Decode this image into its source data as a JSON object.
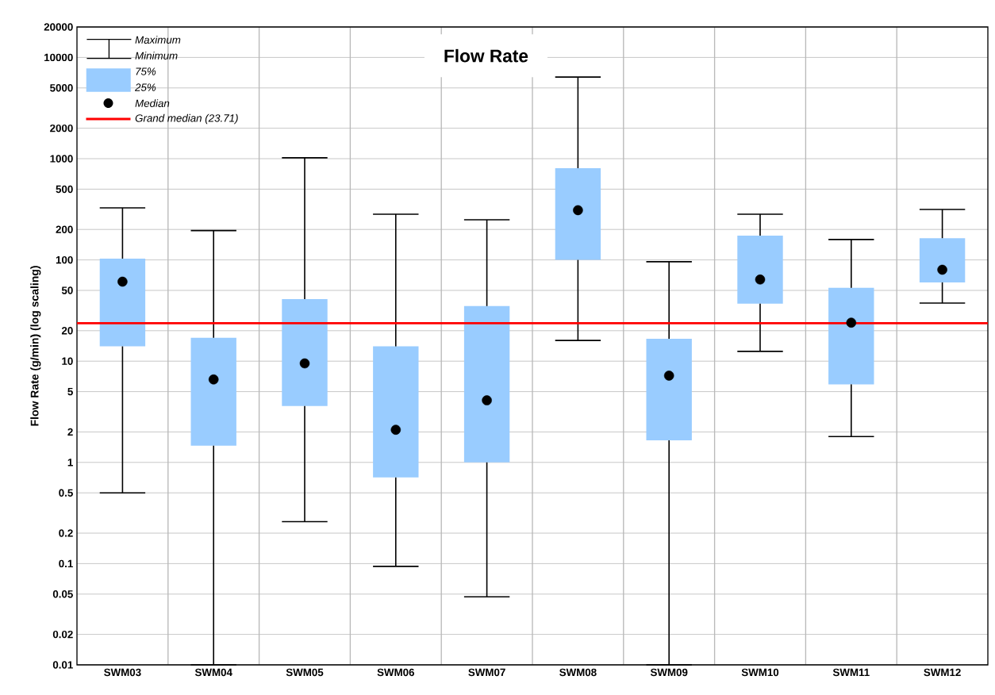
{
  "chart_data": {
    "type": "box",
    "title": "Flow Rate",
    "ylabel": "Flow Rate (g/min) (log scaling)",
    "categories": [
      "SWM03",
      "SWM04",
      "SWM05",
      "SWM06",
      "SWM07",
      "SWM08",
      "SWM09",
      "SWM10",
      "SWM11",
      "SWM12"
    ],
    "series": [
      {
        "color": "#99ccff",
        "boxes": [
          {
            "low": 0.5,
            "q1": 14,
            "median": 61,
            "q3": 103,
            "high": 327
          },
          {
            "low": 0.01,
            "q1": 1.46,
            "median": 6.6,
            "q3": 17,
            "high": 195
          },
          {
            "low": 0.26,
            "q1": 3.6,
            "median": 9.5,
            "q3": 41,
            "high": 1020
          },
          {
            "low": 0.094,
            "q1": 0.71,
            "median": 2.1,
            "q3": 14,
            "high": 283
          },
          {
            "low": 0.047,
            "q1": 1.0,
            "median": 4.1,
            "q3": 35,
            "high": 249
          },
          {
            "low": 16,
            "q1": 100,
            "median": 310,
            "q3": 805,
            "high": 6400
          },
          {
            "low": 0.01,
            "q1": 1.65,
            "median": 7.2,
            "q3": 16.6,
            "high": 96
          },
          {
            "low": 12.5,
            "q1": 37,
            "median": 64,
            "q3": 174,
            "high": 283
          },
          {
            "low": 1.8,
            "q1": 5.9,
            "median": 24,
            "q3": 53,
            "high": 159
          },
          {
            "low": 37.5,
            "q1": 60,
            "median": 80,
            "q3": 164,
            "high": 315
          }
        ]
      }
    ],
    "ref_lines": [
      {
        "axis": "y",
        "value": 23.71,
        "label": "Grand median (23.71)",
        "color": "#ff0000"
      }
    ],
    "annotations": [
      "Maximum",
      "Minimum",
      "75%",
      "25%",
      "Median"
    ],
    "log": "y",
    "ylim": [
      0.01,
      20000
    ],
    "yticks": [
      0.01,
      0.02,
      0.05,
      0.1,
      0.2,
      0.5,
      1,
      2,
      5,
      10,
      20,
      50,
      100,
      200,
      500,
      1000,
      2000,
      5000,
      10000,
      20000
    ],
    "grid": true,
    "legend": "top left",
    "marker": "circle"
  }
}
